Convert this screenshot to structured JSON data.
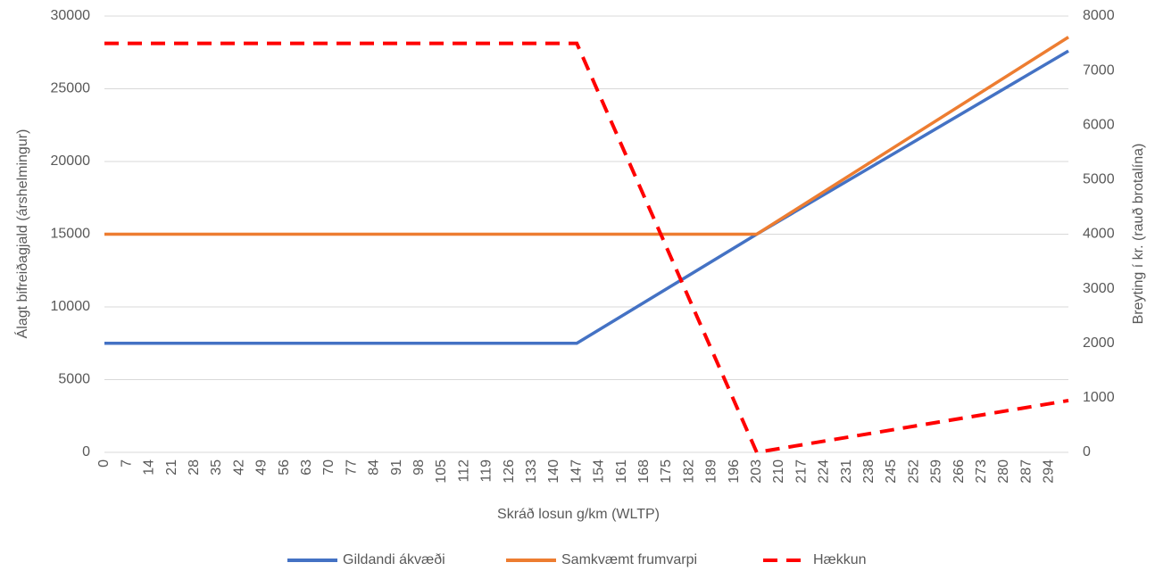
{
  "chart_data": {
    "type": "line",
    "x_label": "Skráð losun g/km (WLTP)",
    "y_label": "Álagt bifreiðagjald (árshelmingur)",
    "y2_label": "Breyting í kr. (rauð brotalína)",
    "x": [
      0,
      147,
      203,
      300
    ],
    "xlim": [
      0,
      300
    ],
    "xticks": [
      0,
      7,
      14,
      21,
      28,
      35,
      42,
      49,
      56,
      63,
      70,
      77,
      84,
      91,
      98,
      105,
      112,
      119,
      126,
      133,
      140,
      147,
      154,
      161,
      168,
      175,
      182,
      189,
      196,
      203,
      210,
      217,
      224,
      231,
      238,
      245,
      252,
      259,
      266,
      273,
      280,
      287,
      294
    ],
    "ylim": [
      0,
      30000
    ],
    "yticks": [
      0,
      5000,
      10000,
      15000,
      20000,
      25000,
      30000
    ],
    "y2lim": [
      0,
      8000
    ],
    "y2ticks": [
      0,
      1000,
      2000,
      3000,
      4000,
      5000,
      6000,
      7000,
      8000
    ],
    "grid": true,
    "legend": "bottom",
    "series": [
      {
        "name": "Gildandi ákvæði",
        "color": "#4472c4",
        "dash": false,
        "values": [
          7500,
          7500,
          15000,
          27600
        ]
      },
      {
        "name": "Samkvæmt frumvarpi",
        "color": "#ed7d31",
        "dash": false,
        "values": [
          15000,
          15000,
          15000,
          28550
        ]
      },
      {
        "name": "Hækkun",
        "color": "#ff0000",
        "dash": true,
        "axis": "y2",
        "values": [
          7500,
          7500,
          0,
          950
        ]
      }
    ]
  }
}
